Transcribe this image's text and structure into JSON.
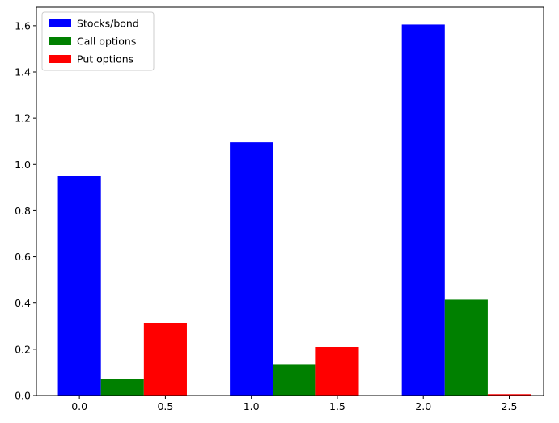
{
  "chart_data": {
    "type": "bar",
    "title": "",
    "xlabel": "",
    "ylabel": "",
    "xlim": [
      -0.25,
      2.7
    ],
    "ylim": [
      0,
      1.68
    ],
    "bar_width": 0.25,
    "x_ticks": [
      "0.0",
      "0.5",
      "1.0",
      "1.5",
      "2.0",
      "2.5"
    ],
    "y_ticks": [
      "0.0",
      "0.2",
      "0.4",
      "0.6",
      "0.8",
      "1.0",
      "1.2",
      "1.4",
      "1.6"
    ],
    "grid": false,
    "legend_position": "top-left",
    "series": [
      {
        "name": "Stocks/bond",
        "color": "#0000ff",
        "x": [
          0.0,
          1.0,
          2.0
        ],
        "values": [
          0.95,
          1.095,
          1.605
        ]
      },
      {
        "name": "Call options",
        "color": "#008000",
        "x": [
          0.25,
          1.25,
          2.25
        ],
        "values": [
          0.072,
          0.135,
          0.415
        ]
      },
      {
        "name": "Put options",
        "color": "#ff0000",
        "x": [
          0.5,
          1.5,
          2.5
        ],
        "values": [
          0.315,
          0.21,
          0.006
        ]
      }
    ]
  }
}
